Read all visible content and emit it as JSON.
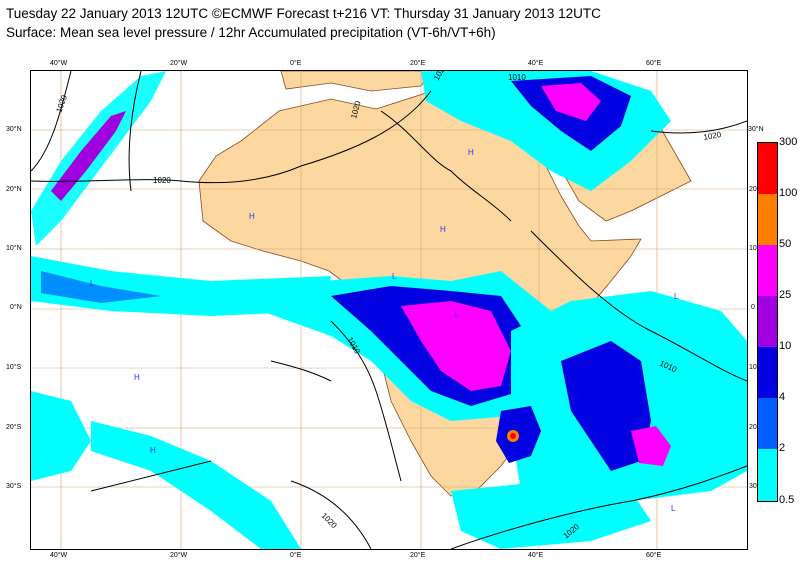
{
  "header": {
    "title_line1": "Tuesday 22 January 2013 12UTC ©ECMWF Forecast t+216 VT: Thursday 31 January 2013 12UTC",
    "title_line2": "Surface: Mean sea level pressure / 12hr Accumulated precipitation (VT-6h/VT+6h)"
  },
  "axes": {
    "top_lon": [
      "40°W",
      "20°W",
      "0°E",
      "20°E",
      "40°E",
      "60°E"
    ],
    "bottom_lon": [
      "40°W",
      "20°W",
      "0°E",
      "20°E",
      "40°E",
      "60°E"
    ],
    "left_lat": [
      "30°N",
      "20°N",
      "10°N",
      "0°N",
      "10°S",
      "20°S",
      "30°S"
    ],
    "right_lat": [
      "30°N",
      "20",
      "10",
      "0",
      "10",
      "20",
      "30"
    ]
  },
  "isobar_labels": [
    "1020",
    "1020",
    "1020",
    "1020",
    "1010",
    "1020",
    "1010",
    "1010",
    "1020",
    "1020"
  ],
  "pressure_centers": [
    "H",
    "H",
    "H",
    "H",
    "L",
    "L",
    "L",
    "L",
    "H",
    "L"
  ],
  "legend": {
    "levels": [
      "300",
      "100",
      "50",
      "25",
      "10",
      "4",
      "2",
      "0.5"
    ],
    "colors": [
      "#ff0000",
      "#ff8000",
      "#ff00ff",
      "#a000e0",
      "#0000e0",
      "#0060ff",
      "#00c0ff",
      "#00ffff"
    ]
  },
  "colors": {
    "land": "#fcd8a0",
    "ocean": "#ffffff",
    "isobar": "#000000",
    "grid": "#d4a070"
  }
}
